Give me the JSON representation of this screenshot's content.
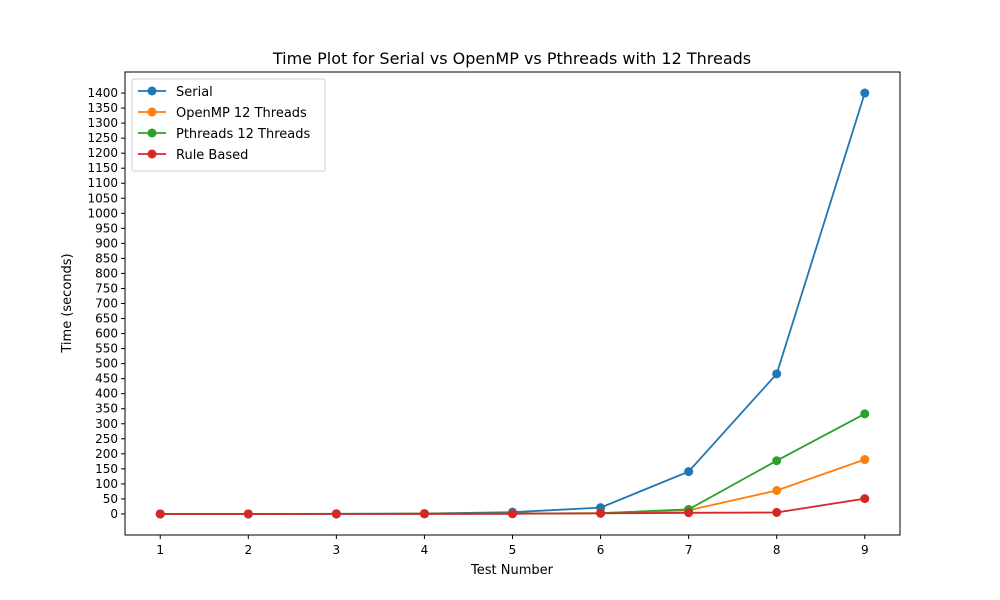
{
  "chart_data": {
    "type": "line",
    "title": "Time Plot for Serial vs OpenMP vs Pthreads with 12 Threads",
    "xlabel": "Test Number",
    "ylabel": "Time (seconds)",
    "x": [
      1,
      2,
      3,
      4,
      5,
      6,
      7,
      8,
      9
    ],
    "xlim": [
      0.6,
      9.4
    ],
    "ylim": [
      -70,
      1470
    ],
    "y_ticks": [
      0,
      50,
      100,
      150,
      200,
      250,
      300,
      350,
      400,
      450,
      500,
      550,
      600,
      650,
      700,
      750,
      800,
      850,
      900,
      950,
      1000,
      1050,
      1100,
      1150,
      1200,
      1250,
      1300,
      1350,
      1400
    ],
    "grid": false,
    "legend_position": "top-left",
    "series": [
      {
        "name": "Serial",
        "color": "#1f77b4",
        "values": [
          0,
          0,
          0.5,
          1.5,
          6,
          21,
          141,
          466,
          1400
        ]
      },
      {
        "name": "OpenMP 12 Threads",
        "color": "#ff7f0e",
        "values": [
          0,
          0,
          0.2,
          0.5,
          1,
          3,
          12,
          78,
          181
        ]
      },
      {
        "name": "Pthreads 12 Threads",
        "color": "#2ca02c",
        "values": [
          0,
          0,
          0.2,
          0.5,
          1,
          3,
          15,
          177,
          333
        ]
      },
      {
        "name": "Rule Based",
        "color": "#d62728",
        "values": [
          0,
          0,
          0.2,
          0.5,
          1,
          2,
          4,
          5,
          51
        ]
      }
    ]
  }
}
